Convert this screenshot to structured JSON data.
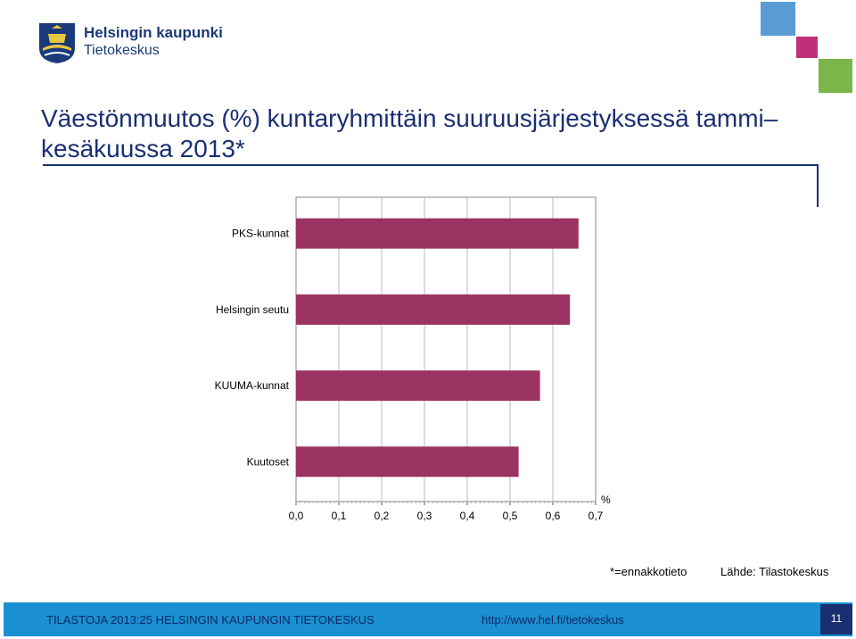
{
  "header": {
    "org_name": "Helsingin kaupunki",
    "org_unit": "Tietokeskus"
  },
  "title": "Väestönmuutos (%) kuntaryhmittäin suuruusjärjestyksessä tammi–kesäkuussa 2013*",
  "chart_data": {
    "type": "bar",
    "orientation": "horizontal",
    "categories": [
      "PKS-kunnat",
      "Helsingin seutu",
      "KUUMA-kunnat",
      "Kuutoset"
    ],
    "values": [
      0.66,
      0.64,
      0.57,
      0.52
    ],
    "xlim": [
      0.0,
      0.7
    ],
    "xticks": [
      "0,0",
      "0,1",
      "0,2",
      "0,3",
      "0,4",
      "0,5",
      "0,6",
      "0,7"
    ],
    "xunit": "%",
    "bar_color": "#9b3362",
    "grid": true
  },
  "footnotes": {
    "estimate_note": "*=ennakkotieto",
    "source": "Lähde: Tilastokeskus"
  },
  "footer": {
    "publication": "TILASTOJA 2013:25 HELSINGIN KAUPUNGIN TIETOKESKUS",
    "url": "http://www.hel.fi/tietokeskus",
    "page_number": "11"
  },
  "colors": {
    "title": "#1a2f72",
    "footer_bar": "#1a8fd1",
    "deco_blue": "#5b9bd5",
    "deco_magenta": "#c0307a",
    "deco_green": "#7ab648"
  }
}
